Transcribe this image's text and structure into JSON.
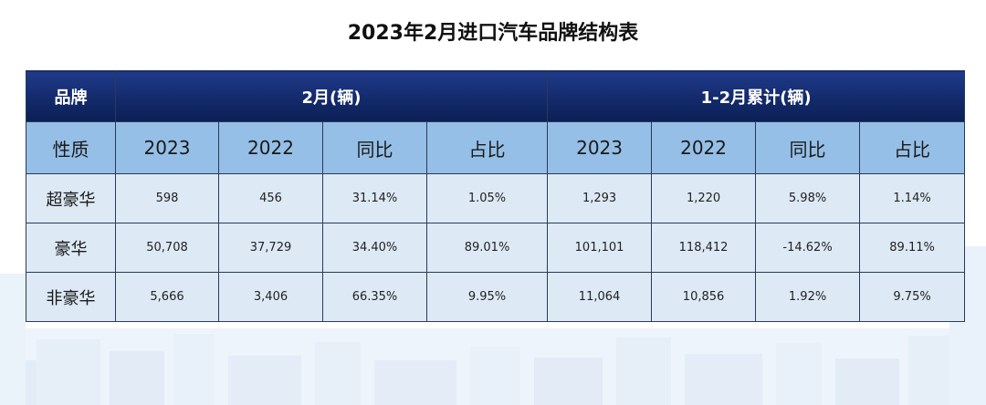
{
  "title": "2023年2月进口汽车品牌结构表",
  "header": {
    "col_brand": "品牌",
    "group_feb": "2月(辆)",
    "group_cum": "1-2月累计(辆)"
  },
  "subheader": {
    "row_label": "性质",
    "columns": [
      "2023",
      "2022",
      "同比",
      "占比",
      "2023",
      "2022",
      "同比",
      "占比"
    ]
  },
  "rows": [
    {
      "label": "超豪华",
      "cells": [
        "598",
        "456",
        "31.14%",
        "1.05%",
        "1,293",
        "1,220",
        "5.98%",
        "1.14%"
      ]
    },
    {
      "label": "豪华",
      "cells": [
        "50,708",
        "37,729",
        "34.40%",
        "89.01%",
        "101,101",
        "118,412",
        "-14.62%",
        "89.11%"
      ]
    },
    {
      "label": "非豪华",
      "cells": [
        "5,666",
        "3,406",
        "66.35%",
        "9.95%",
        "11,064",
        "10,856",
        "1.92%",
        "9.75%"
      ]
    }
  ],
  "colors": {
    "header_bg": "#132a6b",
    "subheader_bg": "#95bfe6",
    "body_bg": "#dde9f5"
  }
}
